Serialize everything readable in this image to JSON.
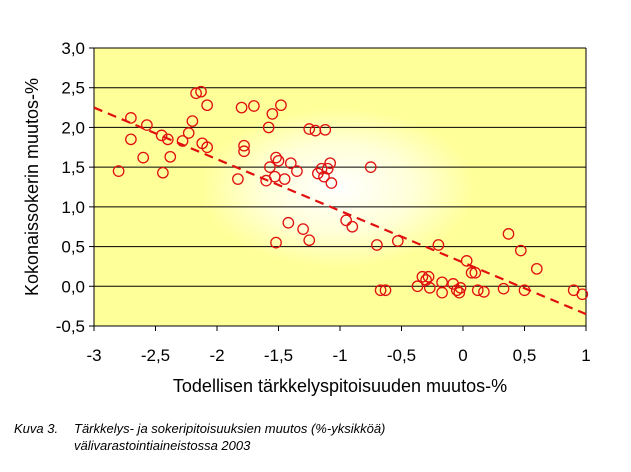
{
  "chart_data": {
    "type": "scatter",
    "xlabel": "Todellisen tärkkelyspitoisuuden muutos-%",
    "ylabel": "Kokonaissokerin muutos-%",
    "xlim": [
      -3,
      1
    ],
    "ylim": [
      -0.5,
      3.0
    ],
    "x_ticks": [
      "-3",
      "-2,5",
      "-2",
      "-1,5",
      "-1",
      "-0,5",
      "0",
      "0,5",
      "1"
    ],
    "y_ticks": [
      "-0,5",
      "0,0",
      "0,5",
      "1,0",
      "1,5",
      "2,0",
      "2,5",
      "3,0"
    ],
    "grid": "horizontal",
    "legend": "none",
    "colors": {
      "plot_background": "#ffff99",
      "markers": "#e01010",
      "trendline": "#e01010",
      "grid": "#000000"
    },
    "series": [
      {
        "marker": "open-circle",
        "points": [
          [
            -2.8,
            1.45
          ],
          [
            -2.7,
            2.12
          ],
          [
            -2.7,
            1.85
          ],
          [
            -2.6,
            1.62
          ],
          [
            -2.57,
            2.03
          ],
          [
            -2.45,
            1.9
          ],
          [
            -2.44,
            1.43
          ],
          [
            -2.4,
            1.85
          ],
          [
            -2.38,
            1.63
          ],
          [
            -2.28,
            1.83
          ],
          [
            -2.23,
            1.93
          ],
          [
            -2.2,
            2.08
          ],
          [
            -2.17,
            2.43
          ],
          [
            -2.13,
            2.45
          ],
          [
            -2.12,
            1.8
          ],
          [
            -2.08,
            1.75
          ],
          [
            -2.08,
            2.28
          ],
          [
            -1.83,
            1.35
          ],
          [
            -1.8,
            2.25
          ],
          [
            -1.78,
            1.77
          ],
          [
            -1.78,
            1.7
          ],
          [
            -1.7,
            2.27
          ],
          [
            -1.6,
            1.33
          ],
          [
            -1.58,
            2.0
          ],
          [
            -1.57,
            1.5
          ],
          [
            -1.55,
            2.17
          ],
          [
            -1.53,
            1.38
          ],
          [
            -1.52,
            1.62
          ],
          [
            -1.5,
            1.58
          ],
          [
            -1.48,
            2.28
          ],
          [
            -1.52,
            0.55
          ],
          [
            -1.45,
            1.35
          ],
          [
            -1.42,
            0.8
          ],
          [
            -1.4,
            1.55
          ],
          [
            -1.35,
            1.45
          ],
          [
            -1.3,
            0.72
          ],
          [
            -1.25,
            0.58
          ],
          [
            -1.25,
            1.98
          ],
          [
            -1.2,
            1.96
          ],
          [
            -1.18,
            1.42
          ],
          [
            -1.15,
            1.48
          ],
          [
            -1.13,
            1.38
          ],
          [
            -1.12,
            1.97
          ],
          [
            -1.1,
            1.48
          ],
          [
            -1.08,
            1.55
          ],
          [
            -1.07,
            1.3
          ],
          [
            -0.95,
            0.83
          ],
          [
            -0.9,
            0.75
          ],
          [
            -0.75,
            1.5
          ],
          [
            -0.7,
            0.52
          ],
          [
            -0.67,
            -0.05
          ],
          [
            -0.63,
            -0.05
          ],
          [
            -0.53,
            0.57
          ],
          [
            -0.37,
            0.0
          ],
          [
            -0.33,
            0.12
          ],
          [
            -0.3,
            0.08
          ],
          [
            -0.28,
            0.12
          ],
          [
            -0.27,
            -0.02
          ],
          [
            -0.2,
            0.52
          ],
          [
            -0.17,
            0.05
          ],
          [
            -0.17,
            -0.08
          ],
          [
            -0.08,
            0.03
          ],
          [
            -0.05,
            -0.05
          ],
          [
            -0.03,
            -0.08
          ],
          [
            -0.02,
            -0.02
          ],
          [
            0.03,
            0.32
          ],
          [
            0.07,
            0.17
          ],
          [
            0.1,
            0.17
          ],
          [
            0.12,
            -0.05
          ],
          [
            0.17,
            -0.07
          ],
          [
            0.33,
            -0.03
          ],
          [
            0.37,
            0.66
          ],
          [
            0.47,
            0.45
          ],
          [
            0.5,
            -0.05
          ],
          [
            0.6,
            0.22
          ],
          [
            0.9,
            -0.05
          ],
          [
            0.97,
            -0.1
          ]
        ]
      }
    ],
    "trendline": {
      "style": "dashed",
      "x": [
        -3,
        1
      ],
      "y": [
        2.25,
        -0.35
      ]
    }
  },
  "caption": {
    "label": "Kuva 3.",
    "line1": "Tärkkelys- ja sokeripitoisuuksien muutos (%-yksikköä)",
    "line2": "välivarastointiaineistossa 2003"
  }
}
